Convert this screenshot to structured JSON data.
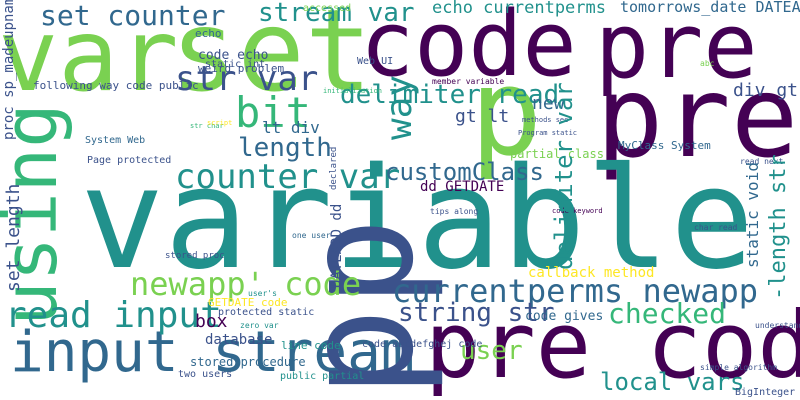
{
  "palette": {
    "dark_purple": "#440154",
    "indigo": "#3b528b",
    "blue": "#31688e",
    "teal": "#21918c",
    "green": "#35b779",
    "lime": "#7ad151",
    "yellow": "#fde725"
  },
  "words": [
    "var",
    "set",
    "code",
    "pre",
    "p",
    "pre",
    "variable",
    "using",
    "pre code",
    "input stream",
    "pp",
    "stream var",
    "set counter",
    "echo currentperms",
    "tomorrows_date DATEADD",
    "str var",
    "delimiter read",
    "bit",
    "length",
    "counter var",
    "customClass",
    "currentperms newapp",
    "newapp' code",
    "read input",
    "string str",
    "checked",
    "user",
    "local vars",
    "gt lt",
    "way",
    "div gt",
    "lt div",
    "new",
    "set length",
    "proc sp_madeupname",
    "code echo",
    "weird problem",
    "following way code public",
    "System Web",
    "Page protected",
    "delimiter var",
    "static void",
    "-length str",
    "callback method",
    "dd GETDATE",
    "DATEADD dd",
    "partial class",
    "MyClass System",
    "stored procedure",
    "database",
    "line code",
    "code abcdefghej code",
    "protected static",
    "GETDATE code",
    "box",
    "zero var",
    "code gives",
    "public partial",
    "two users",
    "Web UI",
    "str char",
    "accessed",
    "echo",
    "static int",
    "stored proc",
    "user's",
    "script",
    "declared",
    "initialization",
    "abc",
    "methods see",
    "char read",
    "read next",
    "tips along",
    "one user",
    "code keyword",
    "Program static",
    "member variable",
    "simple algorithm",
    "BigInteger var",
    "understand",
    "MyFunction"
  ]
}
